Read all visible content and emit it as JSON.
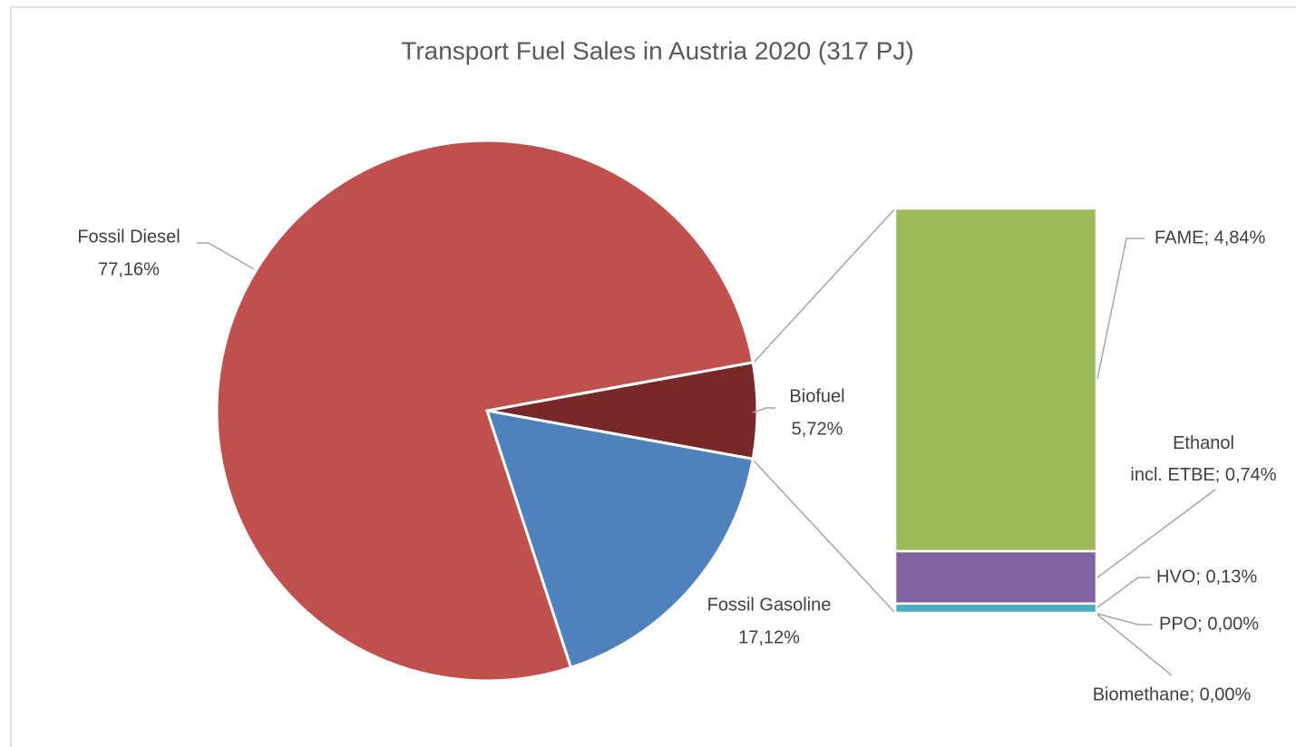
{
  "chart_data": {
    "type": "pie",
    "title": "Transport Fuel Sales in Austria 2020 (317 PJ)",
    "categories": [
      "Biofuel",
      "Fossil Gasoline",
      "Fossil Diesel"
    ],
    "values": [
      5.72,
      17.12,
      77.16
    ],
    "value_labels": [
      "5,72%",
      "17,12%",
      "77,16%"
    ],
    "colors": [
      "#772828",
      "#4f81bd",
      "#c0504d"
    ],
    "breakdown": {
      "type": "bar",
      "labels": [
        "FAME; 4,84%",
        "Ethanol\nincl. ETBE; 0,74%",
        "HVO; 0,13%",
        "PPO; 0,00%",
        "Biomethane; 0,00%"
      ],
      "values": [
        4.84,
        0.74,
        0.13,
        0.0,
        0.0
      ],
      "colors": [
        "#9bbb59",
        "#8064a2",
        "#4bacc6",
        "#f79646",
        "#2c4d75"
      ]
    }
  }
}
